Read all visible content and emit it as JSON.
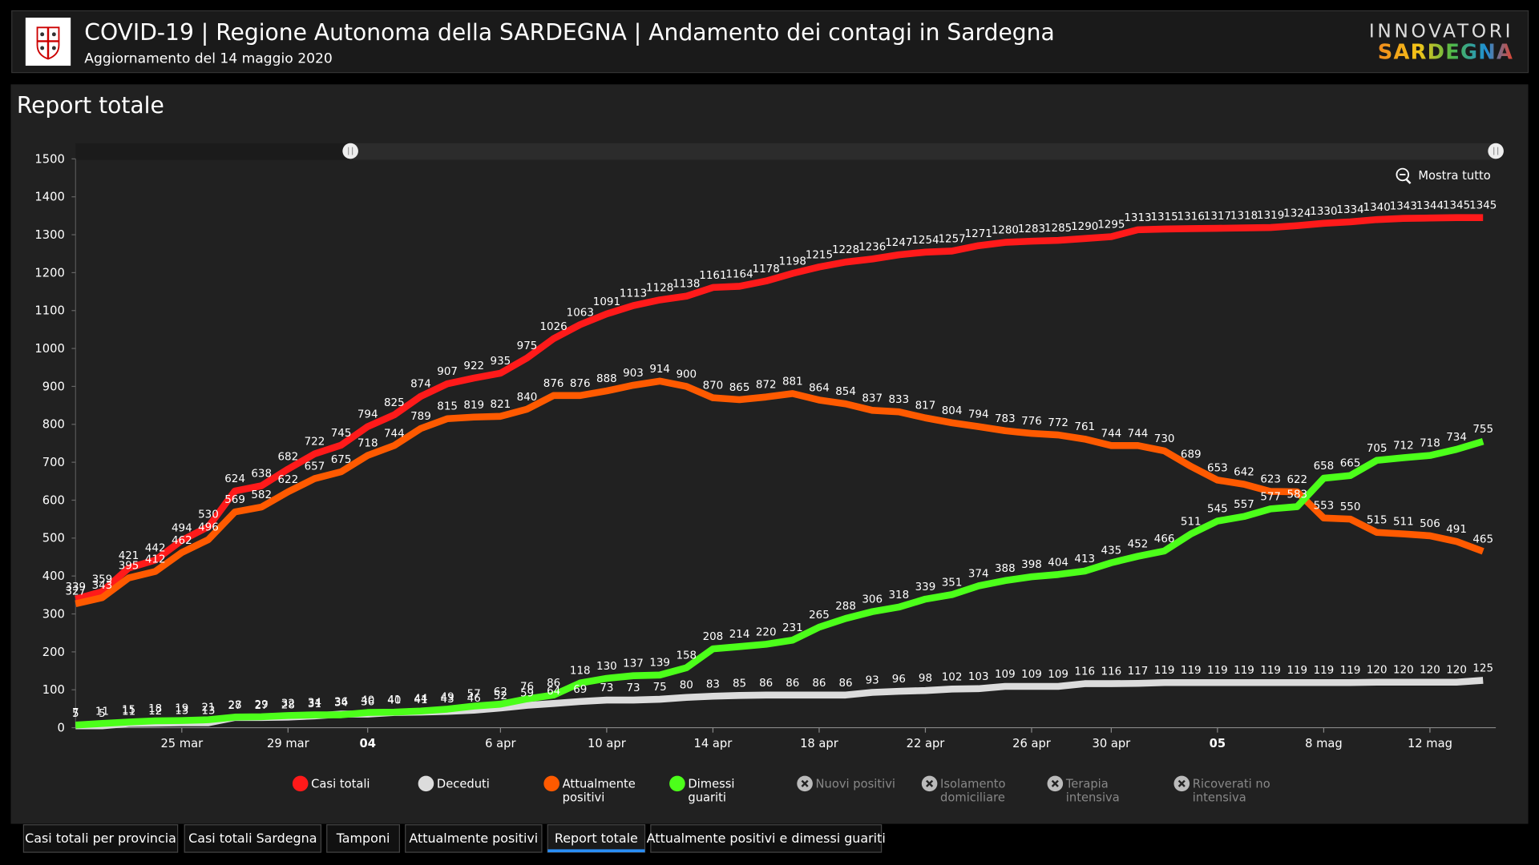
{
  "header": {
    "title": "COVID-19 | Regione Autonoma della SARDEGNA | Andamento dei contagi in Sardegna",
    "subtitle": "Aggiornamento del 14 maggio 2020",
    "logo_top": "INNOVATORI",
    "logo_bottom": "SARDEGNA"
  },
  "panel": {
    "title": "Report totale",
    "reset_zoom": "Mostra tutto"
  },
  "chart_data": {
    "type": "line",
    "categories": [
      null,
      null,
      null,
      null,
      "25 mar",
      null,
      null,
      null,
      "29 mar",
      null,
      null,
      "04",
      null,
      null,
      null,
      null,
      "6 apr",
      null,
      null,
      null,
      "10 apr",
      null,
      null,
      null,
      "14 apr",
      null,
      null,
      null,
      "18 apr",
      null,
      null,
      null,
      "22 apr",
      null,
      null,
      null,
      "26 apr",
      null,
      null,
      "30 apr",
      null,
      null,
      null,
      "05",
      null,
      null,
      null,
      "8 mag",
      null,
      null,
      null,
      "12 mag",
      null,
      null
    ],
    "series": [
      {
        "name": "Casi totali",
        "color": "#ff1a1a",
        "values": [
          339,
          359,
          421,
          442,
          494,
          530,
          624,
          638,
          682,
          722,
          745,
          794,
          825,
          874,
          907,
          922,
          935,
          975,
          1026,
          1063,
          1091,
          1113,
          1128,
          1138,
          1161,
          1164,
          1178,
          1198,
          1215,
          1228,
          1236,
          1247,
          1254,
          1257,
          1271,
          1280,
          1283,
          1285,
          1290,
          1295,
          1313,
          1315,
          1316,
          1317,
          1318,
          1319,
          1324,
          1330,
          1334,
          1340,
          1343,
          1344,
          1345,
          1345
        ]
      },
      {
        "name": "Deceduti",
        "color": "#dcdcdc",
        "values": [
          5,
          5,
          11,
          12,
          13,
          13,
          27,
          27,
          28,
          31,
          36,
          36,
          40,
          41,
          43,
          46,
          52,
          59,
          64,
          69,
          73,
          73,
          75,
          80,
          83,
          85,
          86,
          86,
          86,
          86,
          93,
          96,
          98,
          102,
          103,
          109,
          109,
          109,
          116,
          116,
          117,
          119,
          119,
          119,
          119,
          119,
          119,
          119,
          119,
          120,
          120,
          120,
          120,
          125
        ]
      },
      {
        "name": "Attualmente positivi",
        "color": "#ff5a00",
        "values": [
          327,
          343,
          395,
          412,
          462,
          496,
          569,
          582,
          622,
          657,
          675,
          718,
          744,
          789,
          815,
          819,
          821,
          840,
          876,
          876,
          888,
          903,
          914,
          900,
          870,
          865,
          872,
          881,
          864,
          854,
          837,
          833,
          817,
          804,
          794,
          783,
          776,
          772,
          761,
          744,
          744,
          730,
          689,
          653,
          642,
          623,
          622,
          553,
          550,
          515,
          511,
          506,
          491,
          465
        ]
      },
      {
        "name": "Dimessi guariti",
        "color": "#4cff1a",
        "values": [
          7,
          11,
          15,
          18,
          19,
          21,
          28,
          29,
          32,
          34,
          34,
          40,
          41,
          44,
          49,
          57,
          62,
          76,
          86,
          118,
          130,
          137,
          139,
          158,
          208,
          214,
          220,
          231,
          265,
          288,
          306,
          318,
          339,
          351,
          374,
          388,
          398,
          404,
          413,
          435,
          452,
          466,
          511,
          545,
          557,
          577,
          583,
          658,
          665,
          705,
          712,
          718,
          734,
          755
        ]
      }
    ],
    "inactive_legend": [
      "Nuovi positivi",
      "Isolamento domiciliare",
      "Terapia intensiva",
      "Ricoverati no intensiva"
    ],
    "ylim": [
      0,
      1500
    ],
    "yticks": [
      0,
      100,
      200,
      300,
      400,
      500,
      600,
      700,
      800,
      900,
      1000,
      1100,
      1200,
      1300,
      1400,
      1500
    ],
    "grid": false,
    "legend": "bottom"
  },
  "tabs": {
    "items": [
      "Casi totali per provincia",
      "Casi totali Sardegna",
      "Tamponi",
      "Attualmente positivi",
      "Report totale",
      "Attualmente positivi e dimessi guariti"
    ],
    "active": 4
  }
}
